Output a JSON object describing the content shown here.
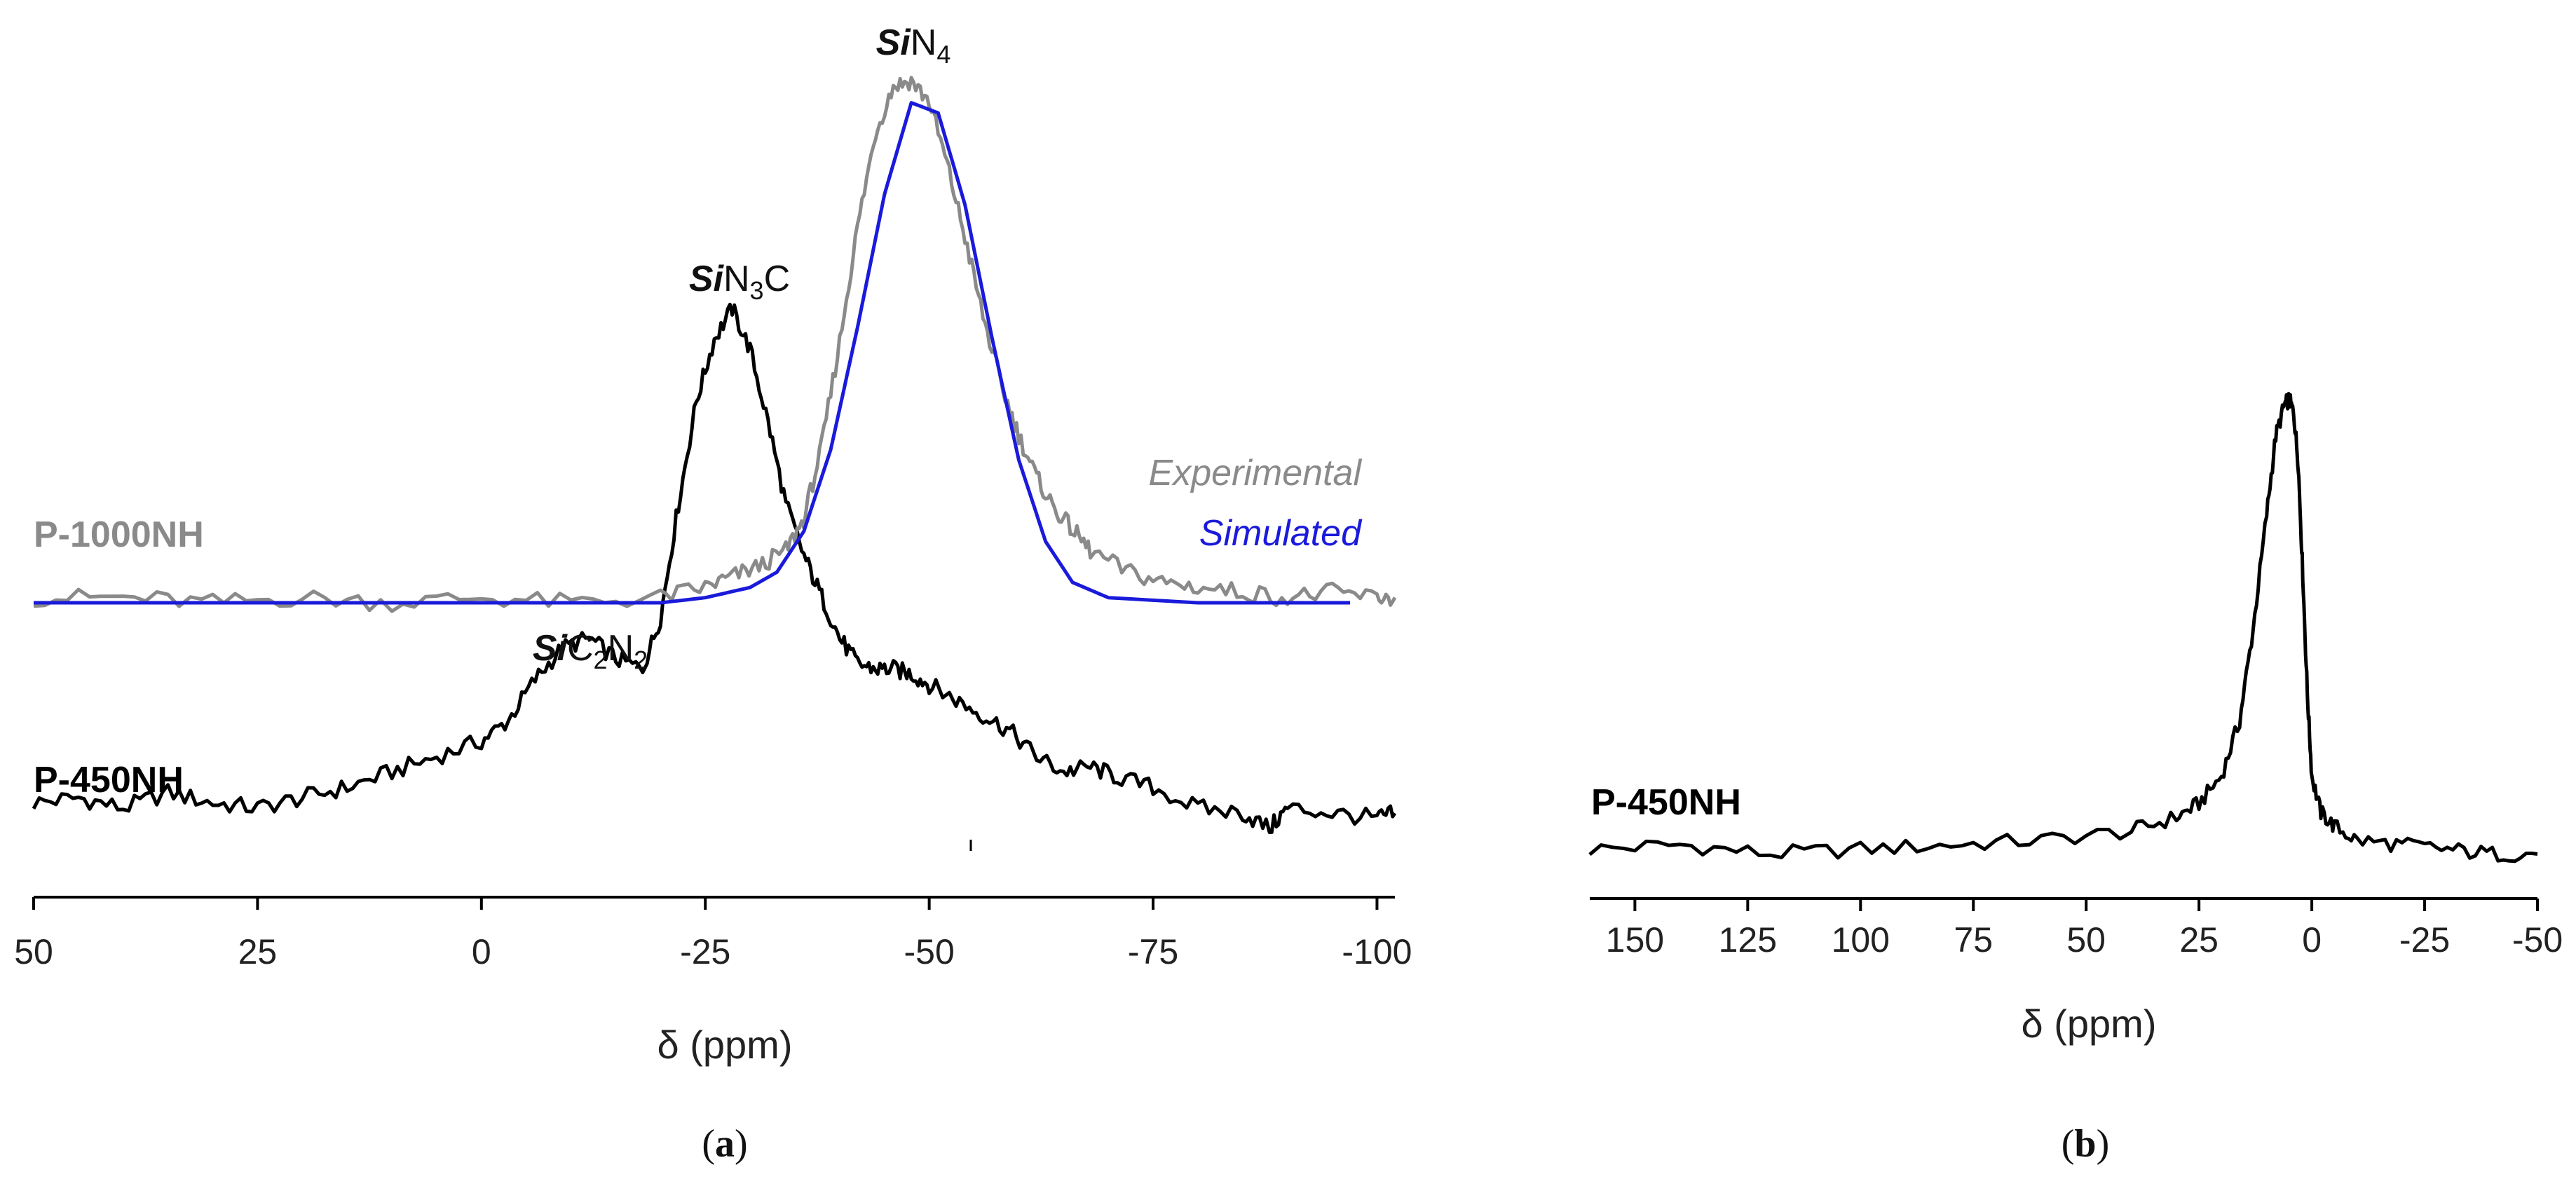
{
  "colors": {
    "p450": "#000000",
    "experimental": "#8a8a8a",
    "simulated": "#1a1adb",
    "axis": "#000000"
  },
  "chart_data": [
    {
      "panel": "a",
      "type": "line",
      "title": "",
      "xlabel": "δ (ppm)",
      "ylabel": "",
      "xlim": [
        50,
        -102
      ],
      "x_reversed": true,
      "xticks": [
        50,
        25,
        0,
        -25,
        -50,
        -75,
        -100
      ],
      "xtick_labels": [
        "50",
        "25",
        "0",
        "-25",
        "-50",
        "-75",
        "-100"
      ],
      "grid": false,
      "series": [
        {
          "id": "p450",
          "name": "P-450NH",
          "color": "black",
          "x": [
            50,
            45,
            40,
            35,
            30,
            25,
            20,
            15,
            10,
            5,
            0,
            -3,
            -6,
            -9,
            -12,
            -15,
            -18,
            -20,
            -22,
            -24,
            -26,
            -28,
            -30,
            -32,
            -34,
            -36,
            -38,
            -40,
            -42,
            -44,
            -46,
            -48,
            -50,
            -53,
            -56,
            -59,
            -62,
            -65,
            -68,
            -71,
            -75,
            -80,
            -85,
            -88,
            -90,
            -95,
            -100,
            -102
          ],
          "y": [
            0.04,
            0.05,
            0.03,
            0.06,
            0.04,
            0.03,
            0.05,
            0.07,
            0.1,
            0.13,
            0.16,
            0.2,
            0.28,
            0.34,
            0.36,
            0.32,
            0.3,
            0.4,
            0.62,
            0.82,
            0.94,
            1.0,
            0.92,
            0.78,
            0.62,
            0.52,
            0.44,
            0.36,
            0.31,
            0.3,
            0.3,
            0.29,
            0.27,
            0.24,
            0.21,
            0.18,
            0.13,
            0.1,
            0.11,
            0.09,
            0.07,
            0.03,
            0.02,
            -0.01,
            0.03,
            0.02,
            0.01,
            0.02
          ]
        },
        {
          "id": "experimental",
          "name": "P-1000NH Experimental",
          "color": "gray",
          "x": [
            50,
            40,
            30,
            20,
            10,
            0,
            -10,
            -20,
            -25,
            -28,
            -31,
            -34,
            -36,
            -38,
            -40,
            -42,
            -44,
            -46,
            -48,
            -50,
            -52,
            -54,
            -56,
            -58,
            -60,
            -62,
            -64,
            -66,
            -68,
            -72,
            -76,
            -80,
            -85,
            -90,
            -95,
            -100,
            -102
          ],
          "y": [
            0.01,
            0.01,
            0.0,
            0.01,
            0.0,
            0.01,
            0.0,
            0.01,
            0.03,
            0.05,
            0.07,
            0.1,
            0.16,
            0.3,
            0.5,
            0.72,
            0.9,
            0.99,
            1.0,
            0.96,
            0.84,
            0.7,
            0.55,
            0.42,
            0.32,
            0.24,
            0.18,
            0.14,
            0.1,
            0.06,
            0.04,
            0.03,
            0.02,
            0.01,
            0.02,
            0.01,
            0.01
          ]
        },
        {
          "id": "simulated",
          "name": "P-1000NH Simulated",
          "color": "blue",
          "x": [
            50,
            20,
            0,
            -20,
            -25,
            -30,
            -33,
            -36,
            -39,
            -42,
            -45,
            -48,
            -51,
            -54,
            -57,
            -60,
            -63,
            -66,
            -70,
            -80,
            -97
          ],
          "y": [
            0.0,
            0.0,
            0.0,
            0.0,
            0.01,
            0.03,
            0.06,
            0.14,
            0.3,
            0.54,
            0.8,
            0.98,
            0.96,
            0.78,
            0.52,
            0.28,
            0.12,
            0.04,
            0.01,
            0.0,
            0.0
          ]
        }
      ],
      "sample_labels": [
        "P-1000NH",
        "P-450NH"
      ],
      "legend": [
        "Experimental",
        "Simulated"
      ],
      "annotations": [
        {
          "si": "Si",
          "rest": "N",
          "sub": "4"
        },
        {
          "si": "Si",
          "rest": "N",
          "sub": "3",
          "tail": "C"
        },
        {
          "si": "Si",
          "rest": "C",
          "sub": "2",
          "rest2": "N",
          "sub2": "2"
        }
      ],
      "panel_label": "(a)"
    },
    {
      "panel": "b",
      "type": "line",
      "title": "",
      "xlabel": "δ (ppm)",
      "ylabel": "",
      "xlim": [
        160,
        -50
      ],
      "x_reversed": true,
      "xticks": [
        150,
        125,
        100,
        75,
        50,
        25,
        0,
        -25,
        -50
      ],
      "xtick_labels": [
        "150",
        "125",
        "100",
        "75",
        "50",
        "25",
        "0",
        "-25",
        "-50"
      ],
      "grid": false,
      "series": [
        {
          "id": "p450b",
          "name": "P-450NH",
          "color": "black",
          "x": [
            160,
            140,
            120,
            100,
            80,
            60,
            40,
            30,
            25,
            20,
            16,
            13,
            10,
            8,
            6,
            5,
            4,
            3,
            2,
            1,
            0,
            -2,
            -5,
            -10,
            -20,
            -30,
            -40,
            -50
          ],
          "y": [
            0.02,
            0.03,
            0.01,
            0.02,
            0.03,
            0.04,
            0.06,
            0.09,
            0.12,
            0.18,
            0.3,
            0.5,
            0.75,
            0.92,
            0.99,
            1.0,
            0.97,
            0.86,
            0.62,
            0.36,
            0.18,
            0.1,
            0.07,
            0.04,
            0.03,
            0.02,
            0.01,
            0.01
          ]
        }
      ],
      "sample_labels": [
        "P-450NH"
      ],
      "panel_label": "(b)"
    }
  ]
}
